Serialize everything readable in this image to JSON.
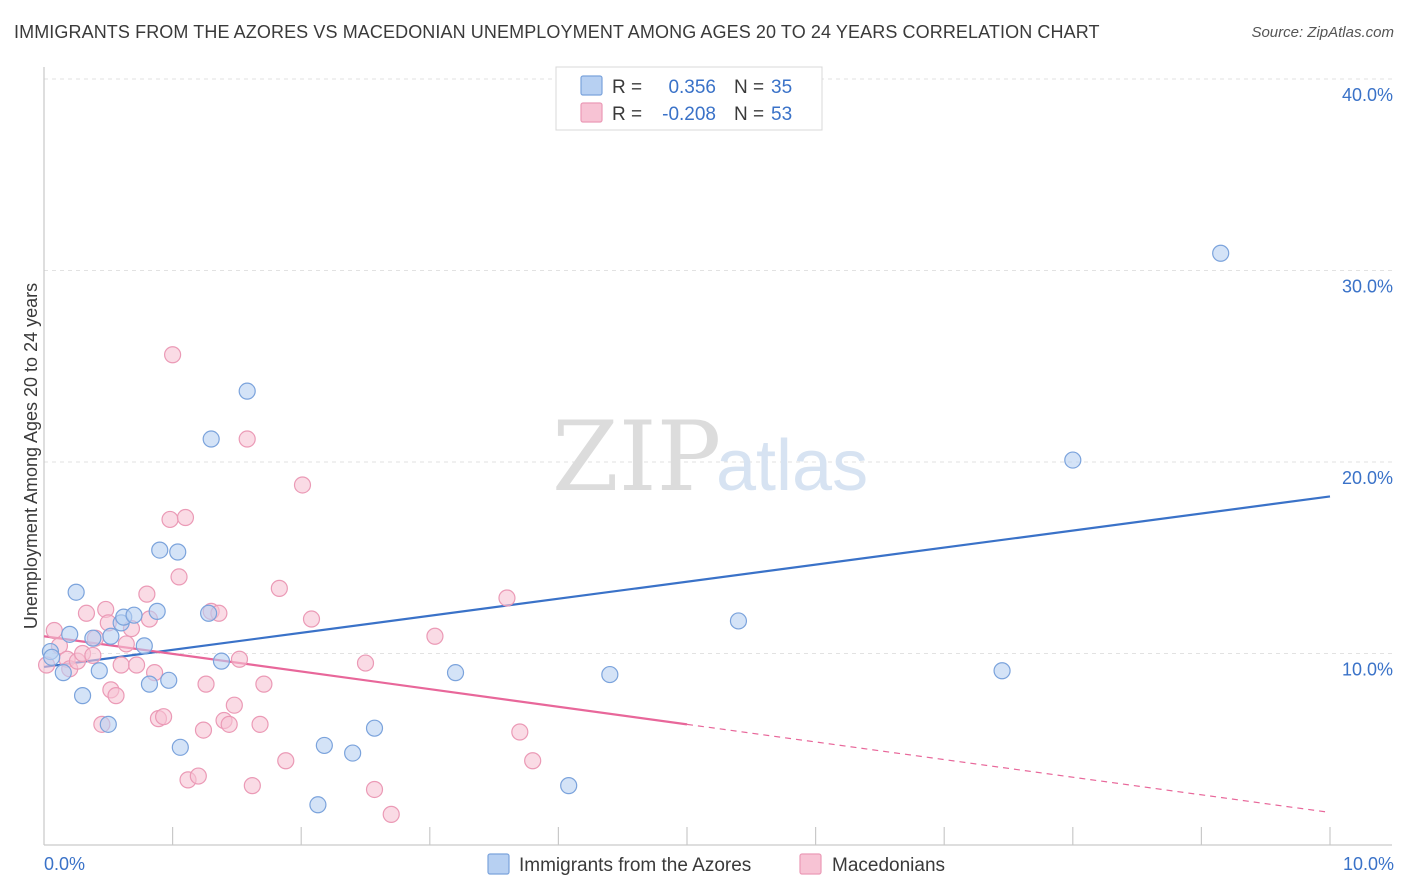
{
  "chart_data": {
    "type": "scatter",
    "title": "IMMIGRANTS FROM THE AZORES VS MACEDONIAN UNEMPLOYMENT AMONG AGES 20 TO 24 YEARS CORRELATION CHART",
    "source": "Source: ZipAtlas.com",
    "xlabel": "",
    "ylabel": "Unemployment Among Ages 20 to 24 years",
    "xlim": [
      0,
      10
    ],
    "ylim": [
      0,
      40
    ],
    "x_tick_labels": {
      "min": "0.0%",
      "max": "10.0%"
    },
    "y_ticks": [
      10,
      20,
      30,
      40
    ],
    "y_tick_labels": [
      "10.0%",
      "20.0%",
      "30.0%",
      "40.0%"
    ],
    "watermark": {
      "zip": "ZIP",
      "atlas": "atlas"
    },
    "colors": {
      "azores_fill": "#b7d0f2",
      "azores_stroke": "#7ba3dc",
      "azores_line": "#3a72c8",
      "maced_fill": "#f7c3d4",
      "maced_stroke": "#eb9ab6",
      "maced_line": "#e8679a",
      "value_text": "#3a72c8",
      "label_text": "#3a3a3a",
      "grid": "#e2e2e2"
    },
    "stats": [
      {
        "r_label": "R =",
        "r_value": "0.356",
        "n_label": "N =",
        "n_value": "35"
      },
      {
        "r_label": "R =",
        "r_value": "-0.208",
        "n_label": "N =",
        "n_value": "53"
      }
    ],
    "series": [
      {
        "name": "Immigrants from the Azores",
        "trend": {
          "x0": 0.0,
          "y0": 9.3,
          "x1": 10.0,
          "y1": 18.2
        },
        "points": [
          [
            0.05,
            10.1
          ],
          [
            0.15,
            9.0
          ],
          [
            0.2,
            11.0
          ],
          [
            0.25,
            13.2
          ],
          [
            0.3,
            7.8
          ],
          [
            0.38,
            10.8
          ],
          [
            0.43,
            9.1
          ],
          [
            0.5,
            6.3
          ],
          [
            0.52,
            10.9
          ],
          [
            0.6,
            11.6
          ],
          [
            0.62,
            11.9
          ],
          [
            0.7,
            12.0
          ],
          [
            0.78,
            10.4
          ],
          [
            0.82,
            8.4
          ],
          [
            0.88,
            12.2
          ],
          [
            0.9,
            15.4
          ],
          [
            0.97,
            8.6
          ],
          [
            1.04,
            15.3
          ],
          [
            1.06,
            5.1
          ],
          [
            1.28,
            12.1
          ],
          [
            1.3,
            21.2
          ],
          [
            1.38,
            9.6
          ],
          [
            1.58,
            23.7
          ],
          [
            2.13,
            2.1
          ],
          [
            2.18,
            5.2
          ],
          [
            2.4,
            4.8
          ],
          [
            2.57,
            6.1
          ],
          [
            3.2,
            9.0
          ],
          [
            4.08,
            3.1
          ],
          [
            4.4,
            8.9
          ],
          [
            5.4,
            11.7
          ],
          [
            7.45,
            9.1
          ],
          [
            8.0,
            20.1
          ],
          [
            9.15,
            30.9
          ],
          [
            0.06,
            9.8
          ]
        ]
      },
      {
        "name": "Macedonians",
        "trend": {
          "x0": 0.0,
          "y0": 10.9,
          "x1": 5.0,
          "y1": 6.3
        },
        "trend_extension": {
          "x0": 5.0,
          "y0": 6.3,
          "x1": 10.0,
          "y1": 1.7
        },
        "points": [
          [
            0.02,
            9.4
          ],
          [
            0.08,
            11.2
          ],
          [
            0.12,
            10.4
          ],
          [
            0.18,
            9.7
          ],
          [
            0.2,
            9.2
          ],
          [
            0.26,
            9.6
          ],
          [
            0.3,
            10.0
          ],
          [
            0.33,
            12.1
          ],
          [
            0.38,
            9.9
          ],
          [
            0.4,
            10.8
          ],
          [
            0.45,
            6.3
          ],
          [
            0.48,
            12.3
          ],
          [
            0.5,
            11.6
          ],
          [
            0.52,
            8.1
          ],
          [
            0.56,
            7.8
          ],
          [
            0.6,
            9.4
          ],
          [
            0.64,
            10.5
          ],
          [
            0.68,
            11.3
          ],
          [
            0.72,
            9.4
          ],
          [
            0.8,
            13.1
          ],
          [
            0.82,
            11.8
          ],
          [
            0.86,
            9.0
          ],
          [
            0.89,
            6.6
          ],
          [
            0.93,
            6.7
          ],
          [
            0.98,
            17.0
          ],
          [
            1.0,
            25.6
          ],
          [
            1.05,
            14.0
          ],
          [
            1.1,
            17.1
          ],
          [
            1.12,
            3.4
          ],
          [
            1.2,
            3.6
          ],
          [
            1.24,
            6.0
          ],
          [
            1.26,
            8.4
          ],
          [
            1.3,
            12.2
          ],
          [
            1.36,
            12.1
          ],
          [
            1.4,
            6.5
          ],
          [
            1.44,
            6.3
          ],
          [
            1.48,
            7.3
          ],
          [
            1.52,
            9.7
          ],
          [
            1.58,
            21.2
          ],
          [
            1.62,
            3.1
          ],
          [
            1.68,
            6.3
          ],
          [
            1.71,
            8.4
          ],
          [
            1.83,
            13.4
          ],
          [
            1.88,
            4.4
          ],
          [
            2.01,
            18.8
          ],
          [
            2.08,
            11.8
          ],
          [
            2.5,
            9.5
          ],
          [
            2.57,
            2.9
          ],
          [
            2.7,
            1.6
          ],
          [
            3.04,
            10.9
          ],
          [
            3.6,
            12.9
          ],
          [
            3.7,
            5.9
          ],
          [
            3.8,
            4.4
          ]
        ]
      }
    ]
  }
}
